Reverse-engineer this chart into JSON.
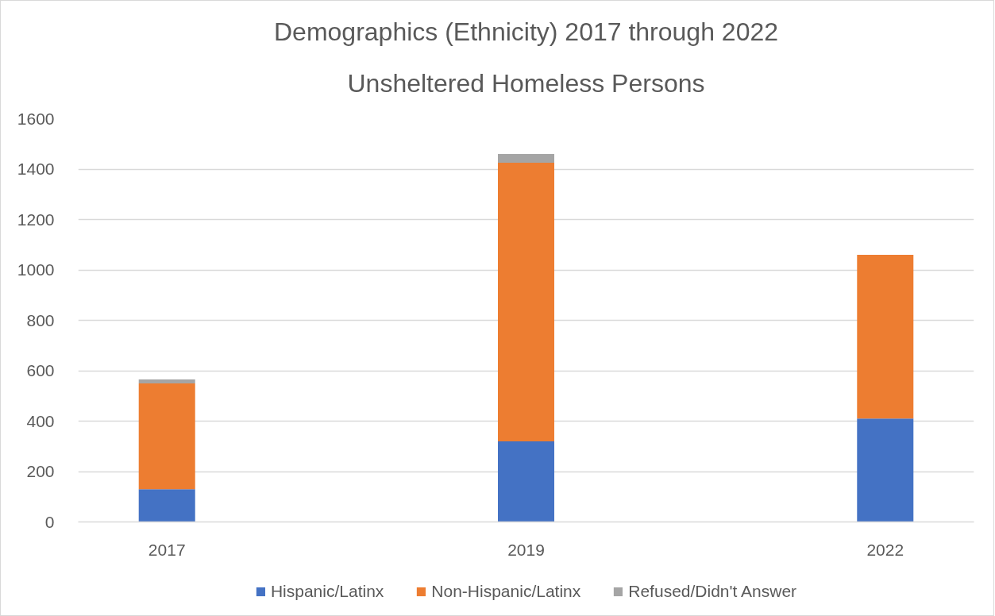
{
  "chart_data": {
    "type": "bar",
    "title": "Demographics (Ethnicity) 2017 through 2022",
    "subtitle": "Unsheltered Homeless Persons",
    "categories": [
      "2017",
      "2019",
      "2022"
    ],
    "stacked": true,
    "series": [
      {
        "name": "Hispanic/Latinx",
        "color": "#4472c4",
        "values": [
          130,
          320,
          410
        ]
      },
      {
        "name": "Non-Hispanic/Latinx",
        "color": "#ed7d31",
        "values": [
          420,
          1105,
          650
        ]
      },
      {
        "name": "Refused/Didn't Answer",
        "color": "#a5a5a5",
        "values": [
          15,
          35,
          null
        ]
      }
    ],
    "ylim": [
      0,
      1600
    ],
    "yticks": [
      0,
      200,
      400,
      600,
      800,
      1000,
      1200,
      1400,
      1600
    ],
    "grid": "y",
    "legend": "bottom"
  }
}
